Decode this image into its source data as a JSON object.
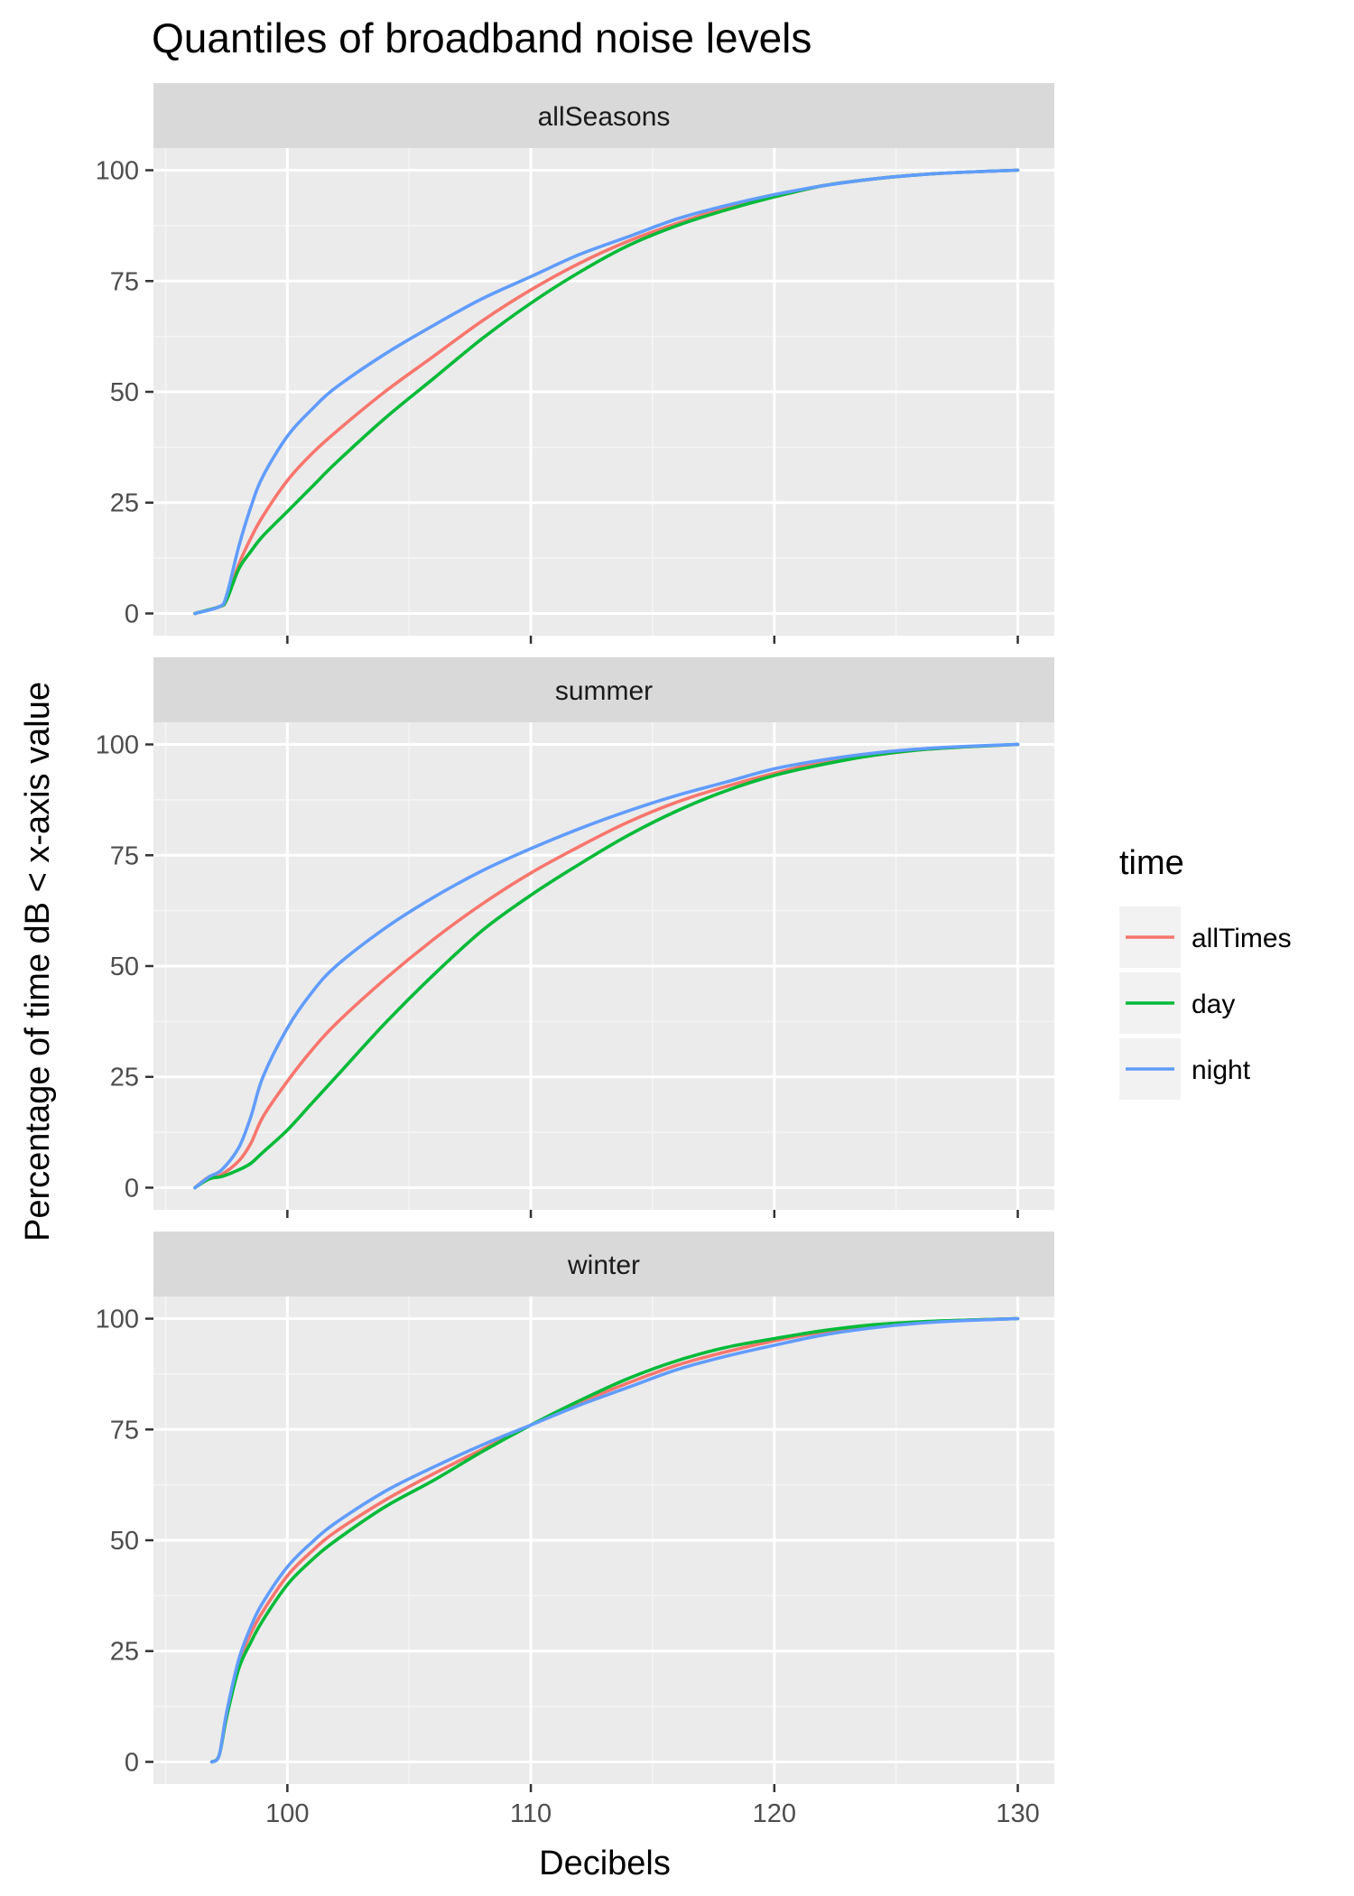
{
  "chart_data": {
    "type": "line",
    "title": "Quantiles of broadband noise levels",
    "xlabel": "Decibels",
    "ylabel": "Percentage of time dB < x-axis value",
    "xlim": [
      94.5,
      131.5
    ],
    "ylim": [
      -5,
      105
    ],
    "x_ticks": [
      100,
      110,
      120,
      130
    ],
    "y_ticks": [
      0,
      25,
      50,
      75,
      100
    ],
    "grid": true,
    "legend": {
      "title": "time",
      "position": "right",
      "entries": [
        {
          "name": "allTimes",
          "color": "#F8766D"
        },
        {
          "name": "day",
          "color": "#00BA38"
        },
        {
          "name": "night",
          "color": "#619CFF"
        }
      ]
    },
    "panels": [
      {
        "name": "allSeasons",
        "series": [
          {
            "name": "allTimes",
            "x": [
              96.2,
              97.2,
              97.5,
              98,
              98.5,
              99,
              100,
              101,
              102,
              104,
              106,
              108,
              110,
              112,
              114,
              116,
              118,
              120,
              122,
              124,
              126,
              128,
              130
            ],
            "y": [
              0,
              1.5,
              3,
              11,
              17,
              22,
              30,
              36,
              41,
              50,
              58,
              66,
              73,
              79,
              84,
              88,
              91.5,
              94,
              96.5,
              98,
              99,
              99.6,
              100
            ]
          },
          {
            "name": "day",
            "x": [
              96.2,
              97.2,
              97.5,
              98,
              98.5,
              99,
              100,
              101,
              102,
              104,
              106,
              108,
              110,
              112,
              114,
              116,
              118,
              120,
              122,
              124,
              126,
              128,
              130
            ],
            "y": [
              0,
              1.5,
              3,
              10,
              14,
              17.5,
              23,
              28.5,
              34,
              44,
              53,
              62,
              70,
              77,
              83,
              87.5,
              91,
              94,
              96.5,
              98,
              99,
              99.6,
              100
            ]
          },
          {
            "name": "night",
            "x": [
              96.2,
              97.2,
              97.5,
              98,
              98.5,
              99,
              100,
              101,
              102,
              104,
              106,
              108,
              110,
              112,
              114,
              116,
              118,
              120,
              122,
              124,
              126,
              128,
              130
            ],
            "y": [
              0,
              1.5,
              4,
              15,
              24,
              31,
              40,
              46,
              51,
              58.5,
              65,
              71,
              76,
              81,
              85,
              89,
              92,
              94.5,
              96.5,
              98,
              99,
              99.6,
              100
            ]
          }
        ]
      },
      {
        "name": "summer",
        "series": [
          {
            "name": "allTimes",
            "x": [
              96.2,
              96.8,
              97.3,
              98,
              98.5,
              99,
              100,
              101,
              102,
              104,
              106,
              108,
              110,
              112,
              114,
              116,
              118,
              120,
              122,
              124,
              126,
              128,
              130
            ],
            "y": [
              0,
              2.5,
              3,
              6,
              10,
              16,
              24,
              31,
              37,
              47,
              56,
              64,
              71,
              77,
              82.5,
              87,
              90.5,
              93.5,
              96,
              97.5,
              98.8,
              99.5,
              100
            ]
          },
          {
            "name": "day",
            "x": [
              96.2,
              96.8,
              97.3,
              98,
              98.5,
              99,
              100,
              101,
              102,
              104,
              106,
              108,
              110,
              112,
              114,
              116,
              118,
              120,
              122,
              124,
              126,
              128,
              130
            ],
            "y": [
              0,
              2,
              2.5,
              4,
              5.5,
              8,
              13,
              19,
              25,
              37,
              48,
              58,
              66,
              73,
              79.5,
              85,
              89.5,
              93,
              95.5,
              97.5,
              98.8,
              99.5,
              100
            ]
          },
          {
            "name": "night",
            "x": [
              96.2,
              96.8,
              97.3,
              98,
              98.5,
              99,
              100,
              101,
              102,
              104,
              106,
              108,
              110,
              112,
              114,
              116,
              118,
              120,
              122,
              124,
              126,
              128,
              130
            ],
            "y": [
              0,
              2.5,
              4,
              9,
              16,
              25,
              36,
              44,
              50,
              58.5,
              65.5,
              71.5,
              76.5,
              81,
              85,
              88.5,
              91.5,
              94.5,
              96.5,
              98,
              99,
              99.6,
              100
            ]
          }
        ]
      },
      {
        "name": "winter",
        "series": [
          {
            "name": "allTimes",
            "x": [
              96.9,
              97.2,
              97.5,
              98,
              98.5,
              99,
              100,
              101,
              102,
              104,
              106,
              108,
              110,
              112,
              114,
              116,
              118,
              120,
              122,
              124,
              126,
              128,
              130
            ],
            "y": [
              0,
              1.5,
              10,
              22,
              29,
              34,
              42,
              47.5,
              52,
              59,
              65,
              70.5,
              76,
              81,
              85.5,
              89.5,
              92.5,
              95,
              97,
              98.4,
              99.2,
              99.7,
              100
            ]
          },
          {
            "name": "day",
            "x": [
              96.9,
              97.2,
              97.5,
              98,
              98.5,
              99,
              100,
              101,
              102,
              104,
              106,
              108,
              110,
              112,
              114,
              116,
              118,
              120,
              122,
              124,
              126,
              128,
              130
            ],
            "y": [
              0,
              1.5,
              10,
              21,
              27,
              32,
              40,
              45.5,
              50,
              57.5,
              63.5,
              70,
              76,
              81.5,
              86.5,
              90.5,
              93.5,
              95.5,
              97.3,
              98.6,
              99.3,
              99.7,
              100
            ]
          },
          {
            "name": "night",
            "x": [
              96.9,
              97.2,
              97.5,
              98,
              98.5,
              99,
              100,
              101,
              102,
              104,
              106,
              108,
              110,
              112,
              114,
              116,
              118,
              120,
              122,
              124,
              126,
              128,
              130
            ],
            "y": [
              0,
              1.5,
              11,
              23,
              30.5,
              36,
              44,
              49.5,
              54,
              61,
              66.5,
              71.5,
              76,
              80.5,
              84.5,
              88.5,
              91.5,
              94,
              96.3,
              97.9,
              99,
              99.6,
              100
            ]
          }
        ]
      }
    ]
  }
}
